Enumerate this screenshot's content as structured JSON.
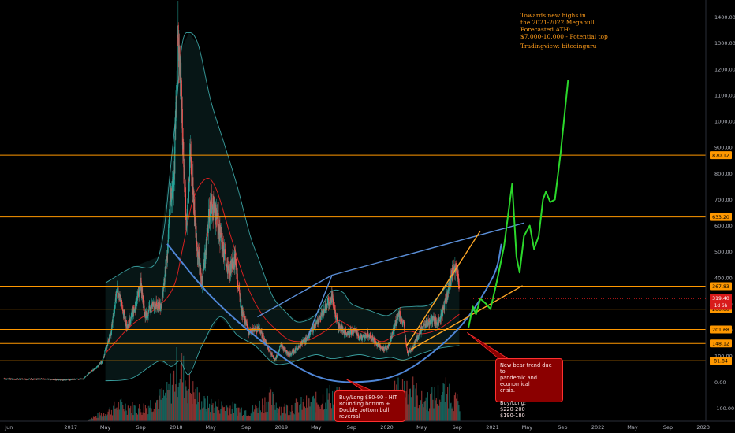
{
  "chart_data": {
    "type": "candlestick",
    "title": "",
    "xlabel": "",
    "ylabel": "",
    "ylim": [
      -150,
      1420
    ],
    "y_ticks": [
      -100,
      0,
      100,
      200,
      300,
      400,
      500,
      600,
      700,
      800,
      900,
      1000,
      1100,
      1200,
      1300,
      1400
    ],
    "y_tick_labels": [
      "-100.00",
      "0.00",
      "100.00",
      "200.00",
      "300.00",
      "400.00",
      "500.00",
      "600.00",
      "700.00",
      "800.00",
      "900.00",
      "1000.00",
      "1100.00",
      "1200.00",
      "1300.00",
      "1400.00"
    ],
    "x_range": [
      "2016-05-01",
      "2023-01-10"
    ],
    "x_ticks": [
      {
        "date": "2016-06-01",
        "label": "Jun"
      },
      {
        "date": "2017-01-01",
        "label": "2017"
      },
      {
        "date": "2017-05-01",
        "label": "May"
      },
      {
        "date": "2017-09-01",
        "label": "Sep"
      },
      {
        "date": "2018-01-01",
        "label": "2018"
      },
      {
        "date": "2018-05-01",
        "label": "May"
      },
      {
        "date": "2018-09-01",
        "label": "Sep"
      },
      {
        "date": "2019-01-01",
        "label": "2019"
      },
      {
        "date": "2019-05-01",
        "label": "May"
      },
      {
        "date": "2019-09-01",
        "label": "Sep"
      },
      {
        "date": "2020-01-01",
        "label": "2020"
      },
      {
        "date": "2020-05-01",
        "label": "May"
      },
      {
        "date": "2020-09-01",
        "label": "Sep"
      },
      {
        "date": "2021-01-01",
        "label": "2021"
      },
      {
        "date": "2021-05-01",
        "label": "May"
      },
      {
        "date": "2021-09-01",
        "label": "Sep"
      },
      {
        "date": "2022-01-01",
        "label": "2022"
      },
      {
        "date": "2022-05-01",
        "label": "May"
      },
      {
        "date": "2022-09-01",
        "label": "Sep"
      },
      {
        "date": "2023-01-01",
        "label": "2023"
      }
    ],
    "price_path": [
      [
        "2016-05-15",
        12
      ],
      [
        "2016-08-01",
        11
      ],
      [
        "2016-10-01",
        12
      ],
      [
        "2016-12-01",
        8
      ],
      [
        "2017-01-15",
        10
      ],
      [
        "2017-02-15",
        13
      ],
      [
        "2017-03-10",
        40
      ],
      [
        "2017-03-25",
        50
      ],
      [
        "2017-04-20",
        80
      ],
      [
        "2017-05-20",
        190
      ],
      [
        "2017-06-12",
        360
      ],
      [
        "2017-07-15",
        210
      ],
      [
        "2017-08-15",
        300
      ],
      [
        "2017-09-01",
        380
      ],
      [
        "2017-09-15",
        250
      ],
      [
        "2017-10-15",
        300
      ],
      [
        "2017-11-10",
        290
      ],
      [
        "2017-11-30",
        470
      ],
      [
        "2017-12-12",
        700
      ],
      [
        "2017-12-25",
        760
      ],
      [
        "2018-01-08",
        1350
      ],
      [
        "2018-01-20",
        1050
      ],
      [
        "2018-02-06",
        600
      ],
      [
        "2018-02-20",
        880
      ],
      [
        "2018-03-15",
        520
      ],
      [
        "2018-04-01",
        380
      ],
      [
        "2018-05-01",
        690
      ],
      [
        "2018-05-20",
        650
      ],
      [
        "2018-06-28",
        420
      ],
      [
        "2018-07-25",
        470
      ],
      [
        "2018-08-15",
        280
      ],
      [
        "2018-09-10",
        190
      ],
      [
        "2018-10-15",
        205
      ],
      [
        "2018-11-20",
        120
      ],
      [
        "2018-12-10",
        85
      ],
      [
        "2018-12-30",
        140
      ],
      [
        "2019-01-28",
        105
      ],
      [
        "2019-02-28",
        135
      ],
      [
        "2019-04-01",
        170
      ],
      [
        "2019-05-15",
        250
      ],
      [
        "2019-06-25",
        330
      ],
      [
        "2019-07-15",
        220
      ],
      [
        "2019-08-15",
        185
      ],
      [
        "2019-09-15",
        200
      ],
      [
        "2019-09-28",
        165
      ],
      [
        "2019-10-28",
        185
      ],
      [
        "2019-11-25",
        150
      ],
      [
        "2019-12-17",
        125
      ],
      [
        "2020-01-05",
        135
      ],
      [
        "2020-02-12",
        265
      ],
      [
        "2020-02-28",
        225
      ],
      [
        "2020-03-13",
        110
      ],
      [
        "2020-04-01",
        135
      ],
      [
        "2020-05-01",
        205
      ],
      [
        "2020-06-01",
        240
      ],
      [
        "2020-07-01",
        230
      ],
      [
        "2020-07-25",
        320
      ],
      [
        "2020-08-15",
        420
      ],
      [
        "2020-08-29",
        430
      ],
      [
        "2020-09-04",
        390
      ],
      [
        "2020-09-08",
        340
      ]
    ],
    "upper_band_path": [
      [
        "2017-05-01",
        380
      ],
      [
        "2017-08-01",
        440
      ],
      [
        "2017-11-01",
        480
      ],
      [
        "2017-12-20",
        900
      ],
      [
        "2018-01-20",
        1280
      ],
      [
        "2018-02-15",
        1340
      ],
      [
        "2018-03-20",
        1290
      ],
      [
        "2018-05-01",
        1080
      ],
      [
        "2018-06-15",
        920
      ],
      [
        "2018-08-01",
        750
      ],
      [
        "2018-09-15",
        560
      ],
      [
        "2018-10-15",
        470
      ],
      [
        "2018-12-01",
        330
      ],
      [
        "2019-01-15",
        270
      ],
      [
        "2019-03-01",
        230
      ],
      [
        "2019-05-01",
        260
      ],
      [
        "2019-06-20",
        345
      ],
      [
        "2019-08-01",
        345
      ],
      [
        "2019-09-01",
        300
      ],
      [
        "2019-11-01",
        275
      ],
      [
        "2020-01-01",
        255
      ],
      [
        "2020-02-15",
        285
      ],
      [
        "2020-04-01",
        290
      ],
      [
        "2020-06-01",
        300
      ],
      [
        "2020-08-01",
        380
      ],
      [
        "2020-09-08",
        455
      ]
    ],
    "lower_band_path": [
      [
        "2017-05-01",
        5
      ],
      [
        "2017-08-01",
        15
      ],
      [
        "2017-11-01",
        80
      ],
      [
        "2017-12-15",
        60
      ],
      [
        "2018-01-15",
        80
      ],
      [
        "2018-02-15",
        30
      ],
      [
        "2018-04-01",
        140
      ],
      [
        "2018-06-01",
        250
      ],
      [
        "2018-08-01",
        180
      ],
      [
        "2018-10-01",
        140
      ],
      [
        "2018-12-01",
        75
      ],
      [
        "2019-01-15",
        70
      ],
      [
        "2019-03-01",
        85
      ],
      [
        "2019-05-01",
        105
      ],
      [
        "2019-06-20",
        90
      ],
      [
        "2019-08-01",
        95
      ],
      [
        "2019-10-01",
        105
      ],
      [
        "2019-12-01",
        90
      ],
      [
        "2020-01-15",
        95
      ],
      [
        "2020-03-01",
        85
      ],
      [
        "2020-05-01",
        110
      ],
      [
        "2020-07-01",
        130
      ],
      [
        "2020-09-08",
        140
      ]
    ],
    "moving_average_path": [
      [
        "2017-05-01",
        110
      ],
      [
        "2017-08-01",
        220
      ],
      [
        "2017-11-01",
        290
      ],
      [
        "2017-12-25",
        370
      ],
      [
        "2018-01-25",
        520
      ],
      [
        "2018-03-01",
        700
      ],
      [
        "2018-04-15",
        780
      ],
      [
        "2018-05-20",
        740
      ],
      [
        "2018-07-01",
        590
      ],
      [
        "2018-08-15",
        430
      ],
      [
        "2018-09-20",
        330
      ],
      [
        "2018-11-01",
        250
      ],
      [
        "2018-12-15",
        200
      ],
      [
        "2019-02-01",
        160
      ],
      [
        "2019-04-01",
        160
      ],
      [
        "2019-06-01",
        195
      ],
      [
        "2019-07-15",
        235
      ],
      [
        "2019-09-01",
        210
      ],
      [
        "2019-11-01",
        180
      ],
      [
        "2019-12-15",
        155
      ],
      [
        "2020-02-01",
        180
      ],
      [
        "2020-03-20",
        195
      ],
      [
        "2020-05-01",
        185
      ],
      [
        "2020-07-01",
        205
      ],
      [
        "2020-09-08",
        260
      ]
    ],
    "volume_scale_max": 400,
    "volume": [
      [
        "2017-03-01",
        10
      ],
      [
        "2017-05-01",
        50
      ],
      [
        "2017-06-15",
        90
      ],
      [
        "2017-09-01",
        70
      ],
      [
        "2017-12-01",
        150
      ],
      [
        "2018-01-10",
        320
      ],
      [
        "2018-02-10",
        200
      ],
      [
        "2018-04-01",
        100
      ],
      [
        "2018-07-01",
        80
      ],
      [
        "2018-09-15",
        55
      ],
      [
        "2018-11-20",
        130
      ],
      [
        "2019-01-01",
        70
      ],
      [
        "2019-05-01",
        110
      ],
      [
        "2019-06-25",
        150
      ],
      [
        "2019-09-01",
        90
      ],
      [
        "2019-12-01",
        80
      ],
      [
        "2020-03-13",
        210
      ],
      [
        "2020-05-01",
        110
      ],
      [
        "2020-08-01",
        170
      ],
      [
        "2020-09-08",
        80
      ]
    ],
    "horizontal_levels": [
      {
        "value": 870.12,
        "label": "870.12"
      },
      {
        "value": 633.2,
        "label": "633.20"
      },
      {
        "value": 367.83,
        "label": "367.83"
      },
      {
        "value": 280.0,
        "label": "280.00"
      },
      {
        "value": 201.68,
        "label": "201.68"
      },
      {
        "value": 148.12,
        "label": "148.12"
      },
      {
        "value": 81.84,
        "label": "81.84"
      }
    ],
    "current_price": {
      "value": 319.4,
      "label": "319.40",
      "countdown": "1d 6h"
    },
    "rounding_bottom_curve": [
      [
        "2017-12-01",
        530
      ],
      [
        "2018-05-01",
        330
      ],
      [
        "2018-11-01",
        150
      ],
      [
        "2019-04-15",
        30
      ],
      [
        "2019-09-15",
        0
      ],
      [
        "2020-03-01",
        40
      ],
      [
        "2020-09-01",
        200
      ],
      [
        "2021-01-01",
        400
      ],
      [
        "2021-02-01",
        530
      ]
    ],
    "trendlines": [
      {
        "color": "#5b8fd8",
        "points": [
          [
            "2018-10-10",
            250
          ],
          [
            "2019-06-25",
            410
          ]
        ]
      },
      {
        "color": "#5b8fd8",
        "points": [
          [
            "2019-04-01",
            170
          ],
          [
            "2019-06-25",
            410
          ]
        ]
      },
      {
        "color": "#5b8fd8",
        "points": [
          [
            "2019-06-25",
            410
          ],
          [
            "2021-04-20",
            610
          ]
        ]
      },
      {
        "color": "#ffa726",
        "points": [
          [
            "2020-03-10",
            140
          ],
          [
            "2020-11-20",
            580
          ]
        ]
      },
      {
        "color": "#ffa726",
        "points": [
          [
            "2020-03-25",
            125
          ],
          [
            "2021-04-15",
            370
          ]
        ]
      }
    ],
    "forecast_path": [
      [
        "2020-10-10",
        210
      ],
      [
        "2020-10-25",
        290
      ],
      [
        "2020-11-05",
        260
      ],
      [
        "2020-11-20",
        320
      ],
      [
        "2020-12-10",
        300
      ],
      [
        "2020-12-25",
        280
      ],
      [
        "2021-01-15",
        380
      ],
      [
        "2021-02-10",
        520
      ],
      [
        "2021-03-10",
        760
      ],
      [
        "2021-03-25",
        480
      ],
      [
        "2021-04-05",
        420
      ],
      [
        "2021-04-20",
        560
      ],
      [
        "2021-05-10",
        600
      ],
      [
        "2021-05-25",
        510
      ],
      [
        "2021-06-10",
        560
      ],
      [
        "2021-06-25",
        700
      ],
      [
        "2021-07-05",
        730
      ],
      [
        "2021-07-20",
        690
      ],
      [
        "2021-08-05",
        700
      ],
      [
        "2021-08-25",
        880
      ],
      [
        "2021-09-20",
        1160
      ]
    ],
    "annotations": {
      "headline": "Towards new highs in\nthe 2021-2022 Megabull\nForecasted ATH:\n$7,000-10,000 - Potential top",
      "source": "Tradingview: bitcoinguru",
      "bottom_callout": "Buy/Long $80-90 - HIT\nRounding bottom +\nDouble bottom bull reversal",
      "bear_callout": "New bear trend due to\npandemic and economical\ncrisis.\n\nBuy/Long:\n$220-200\n$190-180"
    },
    "colors": {
      "background": "#000000",
      "up": "#26a69a",
      "down": "#ef5350",
      "level": "#ff9800",
      "band": "#3aa0a0",
      "moving_average": "#d62020",
      "curve": "#4f86d6",
      "forecast": "#2bd82b",
      "price_tag": "#d81b1b",
      "callout": "#8b0000"
    }
  }
}
